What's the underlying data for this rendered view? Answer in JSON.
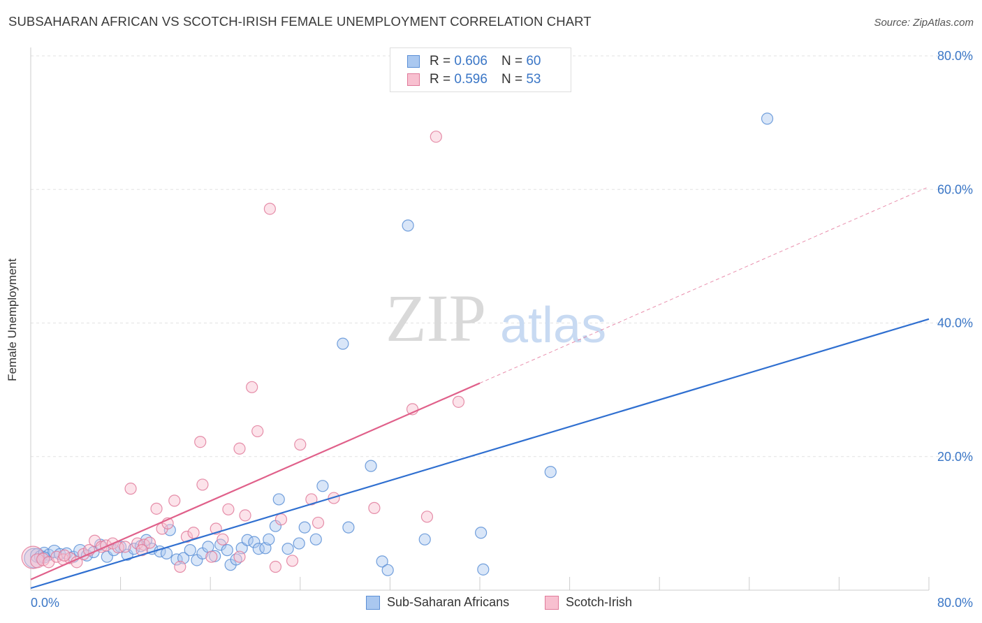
{
  "header": {
    "title": "SUBSAHARAN AFRICAN VS SCOTCH-IRISH FEMALE UNEMPLOYMENT CORRELATION CHART",
    "source": "Source: ZipAtlas.com"
  },
  "watermark": {
    "zip": "ZIP",
    "atlas": "atlas"
  },
  "legend": {
    "rows": [
      {
        "r_label": "R =",
        "r_value": "0.606",
        "n_label": "N =",
        "n_value": "60",
        "color": "#aac8f0",
        "border": "#5b8fd6"
      },
      {
        "r_label": "R =",
        "r_value": "0.596",
        "n_label": "N =",
        "n_value": "53",
        "color": "#f8c0d0",
        "border": "#e07a9a"
      }
    ]
  },
  "bottom_legend": [
    {
      "label": "Sub-Saharan Africans",
      "color": "#aac8f0",
      "border": "#5b8fd6"
    },
    {
      "label": "Scotch-Irish",
      "color": "#f8c0d0",
      "border": "#e07a9a"
    }
  ],
  "chart_data": {
    "type": "scatter",
    "title": "SUBSAHARAN AFRICAN VS SCOTCH-IRISH FEMALE UNEMPLOYMENT CORRELATION CHART",
    "xlabel": "",
    "ylabel": "Female Unemployment",
    "xlim": [
      0,
      80
    ],
    "ylim": [
      0,
      80
    ],
    "x_tick_labels": [
      "0.0%",
      "80.0%"
    ],
    "y_ticks": [
      20,
      40,
      60,
      80
    ],
    "y_tick_labels": [
      "20.0%",
      "40.0%",
      "60.0%",
      "80.0%"
    ],
    "grid": true,
    "legend_placement": "top-center",
    "series": [
      {
        "name": "Sub-Saharan Africans",
        "color": "#5b8fd6",
        "fill": "#aac8f0",
        "trend": {
          "x": [
            0,
            80
          ],
          "y": [
            0.3,
            40.6
          ],
          "dashed_from": null,
          "color": "#2f6fd0"
        },
        "points": [
          [
            0.3,
            4.8,
            14
          ],
          [
            0.6,
            5.2,
            10
          ],
          [
            0.9,
            5.0,
            9
          ],
          [
            1.2,
            5.6,
            8
          ],
          [
            1.6,
            5.3,
            8
          ],
          [
            2.1,
            5.8,
            9
          ],
          [
            2.6,
            5.4,
            8
          ],
          [
            3.2,
            5.5,
            8
          ],
          [
            3.8,
            5.0,
            8
          ],
          [
            4.4,
            5.9,
            9
          ],
          [
            5.0,
            5.2,
            8
          ],
          [
            5.6,
            5.7,
            8
          ],
          [
            6.2,
            6.8,
            8
          ],
          [
            6.8,
            5.0,
            8
          ],
          [
            7.4,
            6.0,
            8
          ],
          [
            8.0,
            6.5,
            8
          ],
          [
            8.6,
            5.3,
            8
          ],
          [
            9.2,
            6.2,
            8
          ],
          [
            9.8,
            6.6,
            8
          ],
          [
            10.3,
            7.5,
            8
          ],
          [
            10.8,
            6.2,
            8
          ],
          [
            11.5,
            5.8,
            8
          ],
          [
            12.1,
            5.5,
            8
          ],
          [
            12.4,
            9.0,
            8
          ],
          [
            13.0,
            4.6,
            8
          ],
          [
            13.6,
            4.8,
            8
          ],
          [
            14.2,
            6.0,
            8
          ],
          [
            14.8,
            4.5,
            8
          ],
          [
            15.3,
            5.5,
            8
          ],
          [
            15.8,
            6.5,
            8
          ],
          [
            16.4,
            5.1,
            8
          ],
          [
            16.9,
            6.8,
            8
          ],
          [
            17.5,
            6.0,
            8
          ],
          [
            17.8,
            3.8,
            8
          ],
          [
            18.3,
            4.6,
            8
          ],
          [
            18.8,
            6.3,
            8
          ],
          [
            19.3,
            7.5,
            8
          ],
          [
            19.9,
            7.2,
            8
          ],
          [
            20.3,
            6.2,
            8
          ],
          [
            20.9,
            6.3,
            8
          ],
          [
            21.2,
            7.6,
            8
          ],
          [
            21.8,
            9.6,
            8
          ],
          [
            22.1,
            13.6,
            8
          ],
          [
            22.9,
            6.2,
            8
          ],
          [
            23.9,
            7.0,
            8
          ],
          [
            24.4,
            9.4,
            8
          ],
          [
            25.4,
            7.6,
            8
          ],
          [
            26.0,
            15.6,
            8
          ],
          [
            27.8,
            36.9,
            8
          ],
          [
            28.3,
            9.4,
            8
          ],
          [
            30.3,
            18.6,
            8
          ],
          [
            31.3,
            4.3,
            8
          ],
          [
            31.8,
            3.0,
            8
          ],
          [
            33.6,
            54.6,
            8
          ],
          [
            35.1,
            7.6,
            8
          ],
          [
            40.1,
            8.6,
            8
          ],
          [
            40.3,
            3.1,
            8
          ],
          [
            46.3,
            17.7,
            8
          ],
          [
            65.6,
            70.6,
            8
          ],
          [
            1.2,
            4.9,
            8
          ]
        ]
      },
      {
        "name": "Scotch-Irish",
        "color": "#e07a9a",
        "fill": "#f8c0d0",
        "trend": {
          "x": [
            0,
            80
          ],
          "y": [
            1.6,
            60.4
          ],
          "dashed_from": 40.0,
          "color": "#e0608a"
        },
        "points": [
          [
            0.2,
            4.9,
            16
          ],
          [
            0.6,
            4.4,
            10
          ],
          [
            1.1,
            4.6,
            9
          ],
          [
            1.6,
            4.2,
            8
          ],
          [
            2.3,
            5.0,
            8
          ],
          [
            2.9,
            4.6,
            8
          ],
          [
            3.5,
            4.8,
            8
          ],
          [
            4.1,
            4.2,
            8
          ],
          [
            4.7,
            5.4,
            8
          ],
          [
            5.2,
            6.0,
            8
          ],
          [
            5.7,
            7.4,
            8
          ],
          [
            6.3,
            6.5,
            8
          ],
          [
            6.7,
            6.7,
            8
          ],
          [
            7.3,
            7.0,
            8
          ],
          [
            7.8,
            6.4,
            8
          ],
          [
            8.4,
            6.5,
            8
          ],
          [
            8.9,
            15.2,
            8
          ],
          [
            9.5,
            7.0,
            8
          ],
          [
            10.1,
            6.8,
            8
          ],
          [
            10.6,
            7.1,
            8
          ],
          [
            11.2,
            12.2,
            8
          ],
          [
            11.7,
            9.2,
            8
          ],
          [
            12.2,
            10.0,
            8
          ],
          [
            12.8,
            13.4,
            8
          ],
          [
            13.3,
            3.5,
            8
          ],
          [
            13.9,
            8.0,
            8
          ],
          [
            14.5,
            8.6,
            8
          ],
          [
            15.1,
            22.2,
            8
          ],
          [
            15.3,
            15.8,
            8
          ],
          [
            16.1,
            5.0,
            8
          ],
          [
            16.5,
            9.2,
            8
          ],
          [
            17.1,
            7.6,
            8
          ],
          [
            17.6,
            12.1,
            8
          ],
          [
            18.6,
            5.0,
            8
          ],
          [
            18.6,
            21.2,
            8
          ],
          [
            19.1,
            11.2,
            8
          ],
          [
            19.7,
            30.4,
            8
          ],
          [
            20.2,
            23.8,
            8
          ],
          [
            21.3,
            57.1,
            8
          ],
          [
            21.8,
            3.5,
            8
          ],
          [
            22.3,
            10.6,
            8
          ],
          [
            23.3,
            4.4,
            8
          ],
          [
            24.0,
            21.8,
            8
          ],
          [
            25.0,
            13.6,
            8
          ],
          [
            25.6,
            10.1,
            8
          ],
          [
            27.0,
            13.8,
            8
          ],
          [
            30.6,
            12.3,
            8
          ],
          [
            34.0,
            27.1,
            8
          ],
          [
            35.3,
            11.0,
            8
          ],
          [
            36.1,
            67.9,
            8
          ],
          [
            38.1,
            28.2,
            8
          ],
          [
            3.0,
            5.2,
            8
          ],
          [
            9.9,
            6.0,
            8
          ]
        ]
      }
    ]
  }
}
